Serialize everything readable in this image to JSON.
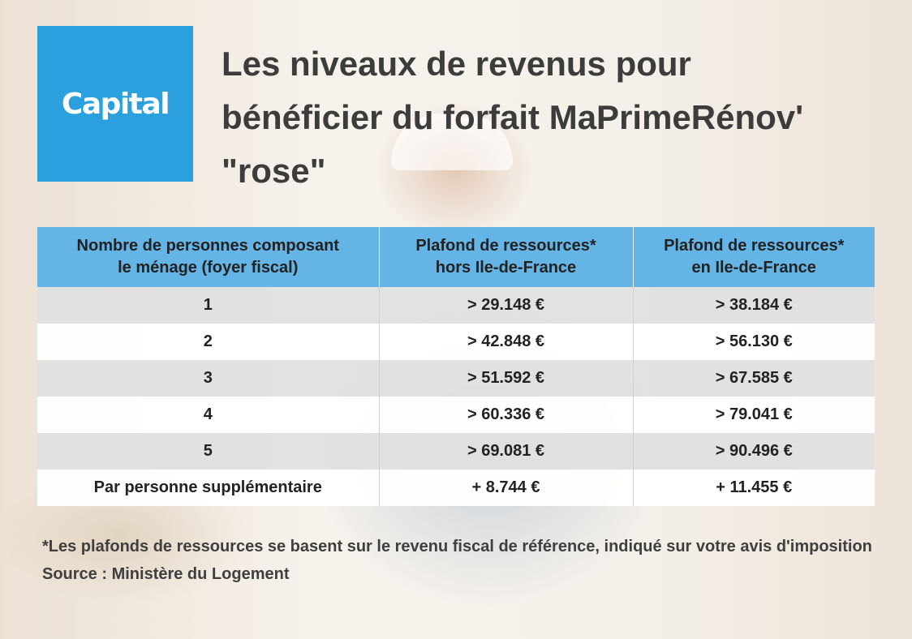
{
  "logo": {
    "text": "Capital",
    "color": "#2aa0df"
  },
  "title": "Les niveaux de revenus pour\nbénéficier du forfait MaPrimeRénov'\n\"rose\"",
  "table": {
    "header_color": "#65b4e6",
    "headers": [
      "Nombre de personnes composant\nle ménage (foyer fiscal)",
      "Plafond de ressources*\nhors Ile-de-France",
      "Plafond de ressources*\nen Ile-de-France"
    ],
    "rows": [
      [
        "1",
        "> 29.148 €",
        "> 38.184 €"
      ],
      [
        "2",
        "> 42.848 €",
        "> 56.130 €"
      ],
      [
        "3",
        "> 51.592 €",
        "> 67.585 €"
      ],
      [
        "4",
        "> 60.336 €",
        "> 79.041 €"
      ],
      [
        "5",
        "> 69.081 €",
        "> 90.496 €"
      ],
      [
        "Par personne supplémentaire",
        "+ 8.744 €",
        "+ 11.455 €"
      ]
    ]
  },
  "footnote": "*Les plafonds de ressources se basent sur le revenu fiscal de référence, indiqué sur votre avis d'imposition",
  "source": "Source : Ministère du Logement"
}
